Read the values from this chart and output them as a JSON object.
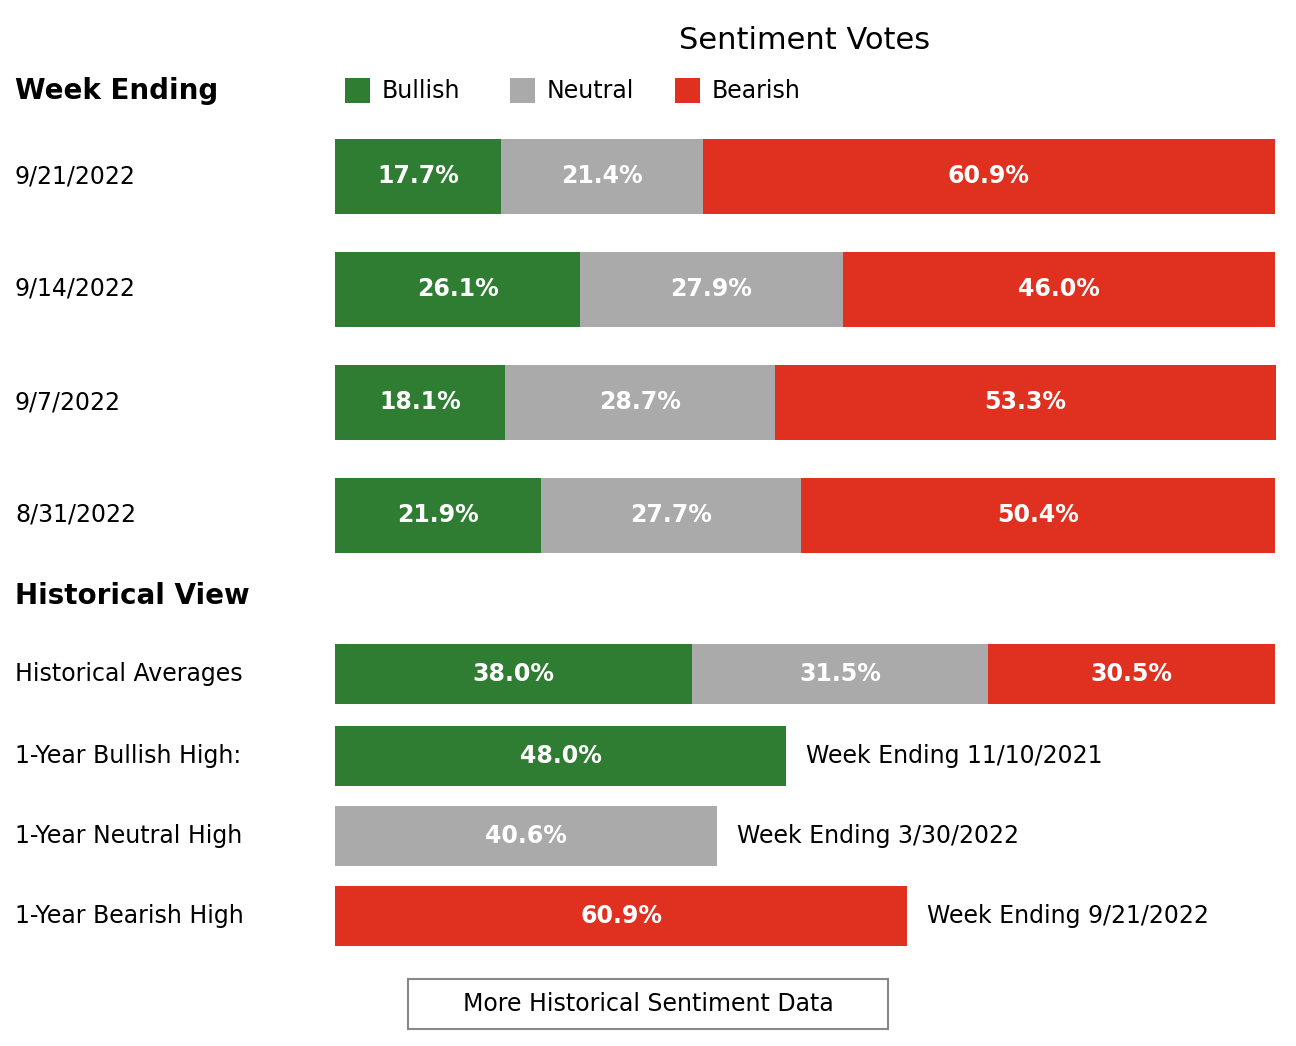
{
  "title": "Sentiment Votes",
  "background_color": "#ffffff",
  "colors": {
    "bullish": "#2e7d32",
    "neutral": "#aaaaaa",
    "bearish": "#e03020"
  },
  "weekly_rows": [
    {
      "label": "9/21/2022",
      "bullish": 17.7,
      "neutral": 21.4,
      "bearish": 60.9
    },
    {
      "label": "9/14/2022",
      "bullish": 26.1,
      "neutral": 27.9,
      "bearish": 46.0
    },
    {
      "label": "9/7/2022",
      "bullish": 18.1,
      "neutral": 28.7,
      "bearish": 53.3
    },
    {
      "label": "8/31/2022",
      "bullish": 21.9,
      "neutral": 27.7,
      "bearish": 50.4
    }
  ],
  "historical_rows": [
    {
      "label": "Historical Averages",
      "bullish": 38.0,
      "neutral": 31.5,
      "bearish": 30.5,
      "annotation": null,
      "bar_color": null
    },
    {
      "label": "1-Year Bullish High:",
      "bullish": 48.0,
      "neutral": null,
      "bearish": null,
      "annotation": "Week Ending 11/10/2021",
      "bar_color": "bullish"
    },
    {
      "label": "1-Year Neutral High",
      "bullish": null,
      "neutral": 40.6,
      "bearish": null,
      "annotation": "Week Ending 3/30/2022",
      "bar_color": "neutral"
    },
    {
      "label": "1-Year Bearish High",
      "bullish": null,
      "neutral": null,
      "bearish": 60.9,
      "annotation": "Week Ending 9/21/2022",
      "bar_color": "bearish"
    }
  ],
  "header_week_ending": "Week Ending",
  "header_title": "Sentiment Votes",
  "historical_view_title": "Historical View",
  "button_text": "More Historical Sentiment Data",
  "legend": [
    {
      "label": "Bullish",
      "color": "#2e7d32"
    },
    {
      "label": "Neutral",
      "color": "#aaaaaa"
    },
    {
      "label": "Bearish",
      "color": "#e03020"
    }
  ],
  "label_fontsize": 17,
  "value_fontsize": 17,
  "title_fontsize": 22,
  "header_fontsize": 20
}
